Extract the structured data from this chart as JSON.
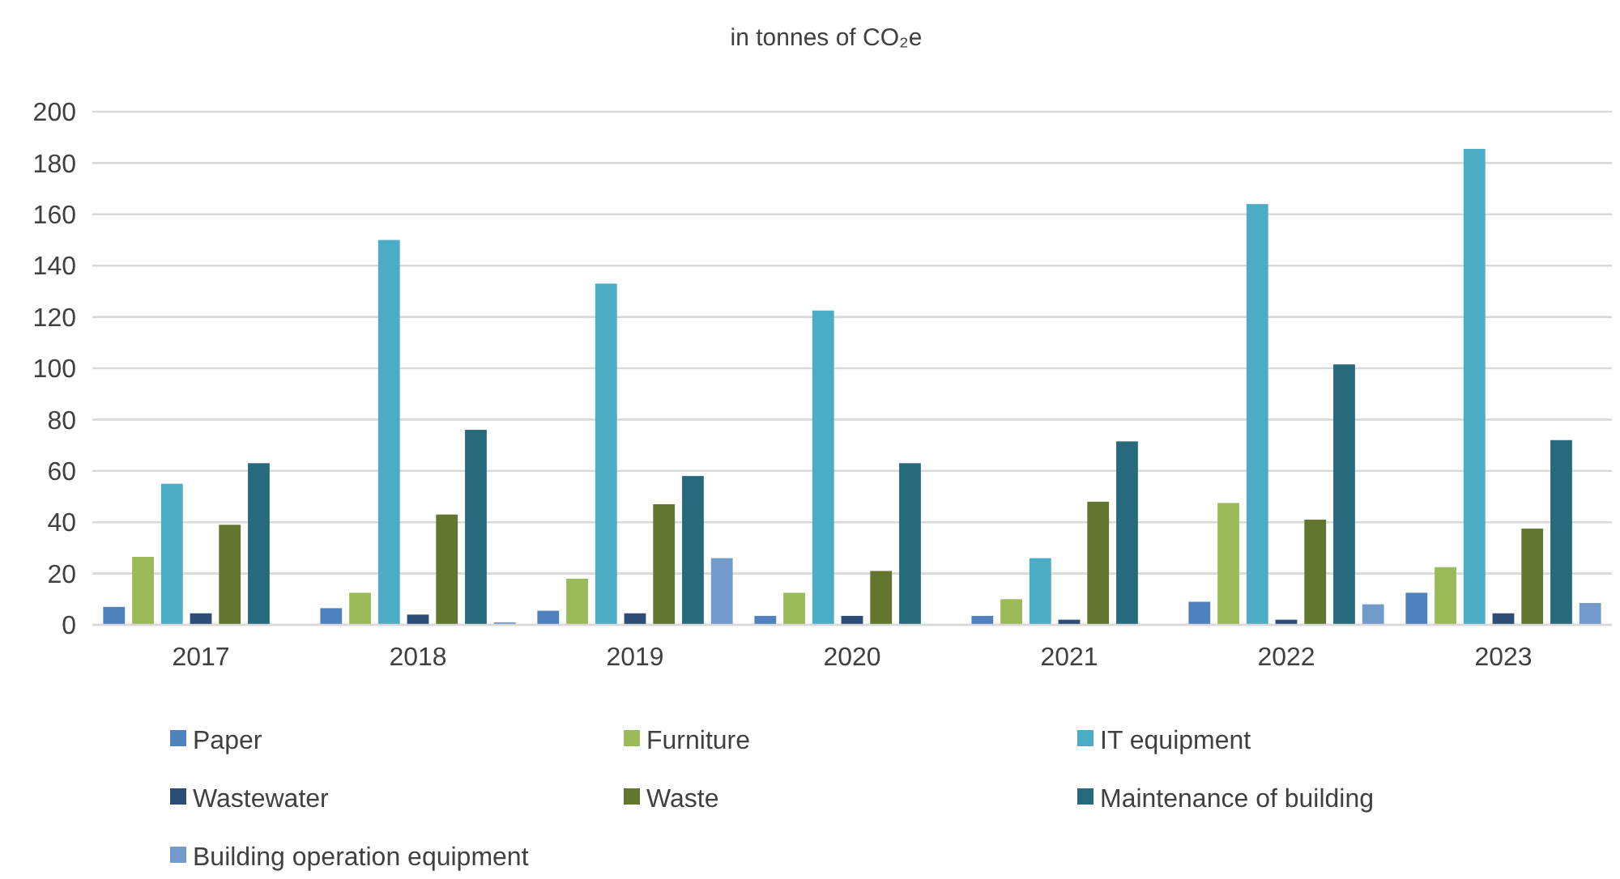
{
  "chart_data": {
    "type": "bar",
    "title": "in tonnes of CO₂e",
    "categories": [
      "2017",
      "2018",
      "2019",
      "2020",
      "2021",
      "2022",
      "2023"
    ],
    "series": [
      {
        "name": "Paper",
        "color": "#4f81bd",
        "values": [
          7,
          6.5,
          5.5,
          3.5,
          3.5,
          9,
          12.5
        ]
      },
      {
        "name": "Furniture",
        "color": "#9bbb59",
        "values": [
          26.5,
          12.5,
          18,
          12.5,
          10,
          47.5,
          22.5
        ]
      },
      {
        "name": "IT equipment",
        "color": "#4bacc6",
        "values": [
          55,
          150,
          133,
          122.5,
          26,
          164,
          185.5
        ]
      },
      {
        "name": "Wastewater",
        "color": "#2c4d75",
        "values": [
          4.5,
          4,
          4.5,
          3.5,
          2,
          2,
          4.5
        ]
      },
      {
        "name": "Waste",
        "color": "#637630",
        "values": [
          39,
          43,
          47,
          21,
          48,
          41,
          37.5
        ]
      },
      {
        "name": "Maintenance of building",
        "color": "#276a7c",
        "values": [
          63,
          76,
          58,
          63,
          71.5,
          101.5,
          72
        ]
      },
      {
        "name": "Building operation equipment",
        "color": "#729aca",
        "values": [
          0,
          1,
          26,
          0,
          0,
          8,
          8.5
        ]
      }
    ],
    "ylim": [
      0,
      200
    ],
    "yticks": [
      0,
      20,
      40,
      60,
      80,
      100,
      120,
      140,
      160,
      180,
      200
    ],
    "grid": "y",
    "legend": "bottom"
  }
}
